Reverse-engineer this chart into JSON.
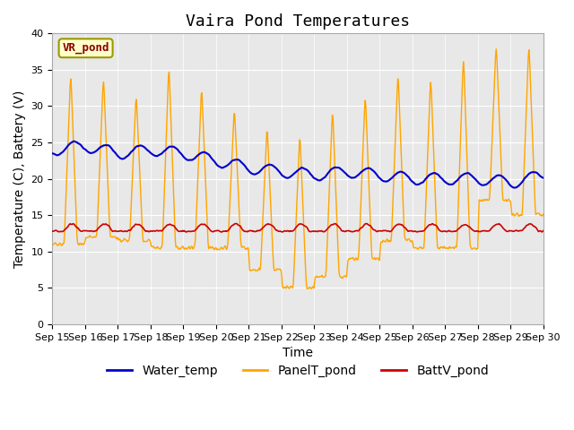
{
  "title": "Vaira Pond Temperatures",
  "xlabel": "Time",
  "ylabel": "Temperature (C), Battery (V)",
  "ylim": [
    0,
    40
  ],
  "yticks": [
    0,
    5,
    10,
    15,
    20,
    25,
    30,
    35,
    40
  ],
  "n_days": 15,
  "xtick_labels": [
    "Sep 15",
    "Sep 16",
    "Sep 17",
    "Sep 18",
    "Sep 19",
    "Sep 20",
    "Sep 21",
    "Sep 22",
    "Sep 23",
    "Sep 24",
    "Sep 25",
    "Sep 26",
    "Sep 27",
    "Sep 28",
    "Sep 29",
    "Sep 30"
  ],
  "site_label": "VR_pond",
  "water_color": "#0000cc",
  "panel_color": "#FFA500",
  "batt_color": "#cc0000",
  "bg_color": "#e8e8e8",
  "legend_labels": [
    "Water_temp",
    "PanelT_pond",
    "BattV_pond"
  ],
  "title_fontsize": 13,
  "axis_label_fontsize": 10,
  "tick_fontsize": 8,
  "legend_fontsize": 10,
  "panel_peaks": [
    35.0,
    34.5,
    32.0,
    36.0,
    33.0,
    30.0,
    27.5,
    26.5,
    30.0,
    32.0,
    35.0,
    34.5,
    37.5,
    39.0,
    39.0
  ],
  "panel_valleys": [
    11.0,
    12.0,
    11.5,
    10.5,
    10.5,
    10.5,
    7.5,
    5.0,
    6.5,
    9.0,
    11.5,
    10.5,
    10.5,
    17.0,
    15.0
  ],
  "water_vals": [
    24.0,
    24.5,
    23.5,
    24.0,
    23.5,
    22.5,
    21.5,
    21.0,
    20.5,
    21.0,
    20.5,
    20.0,
    20.0,
    20.0,
    19.5,
    20.5
  ],
  "batt_base": 12.8,
  "batt_peak": 14.0
}
